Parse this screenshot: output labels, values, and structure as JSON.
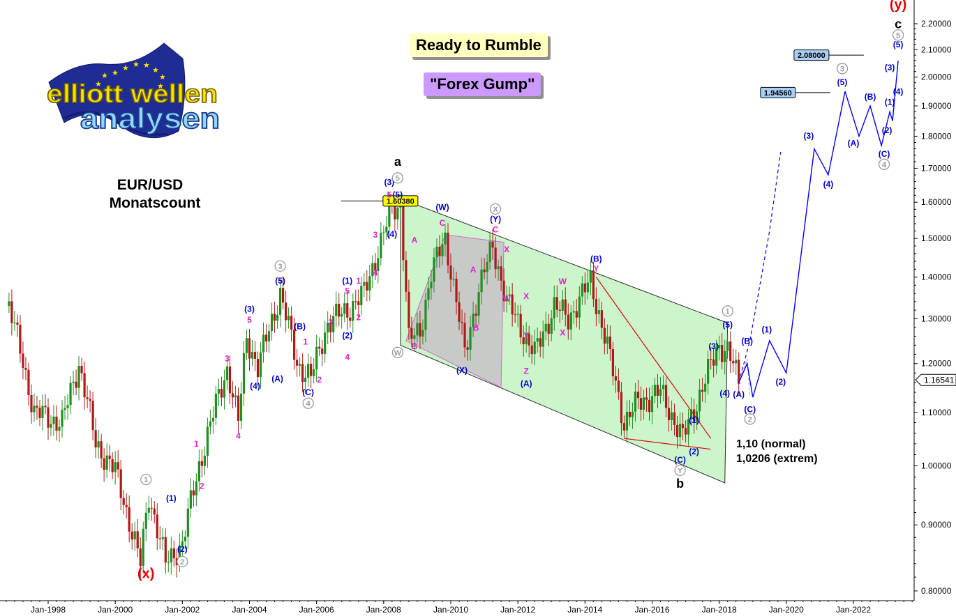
{
  "logo": {
    "line1": "elliott wellen",
    "line2": "analysen"
  },
  "title": {
    "pair": "EUR/USD",
    "subtitle": "Monatscount"
  },
  "badges": {
    "rumble": "Ready to Rumble",
    "gump": "\"Forex Gump\""
  },
  "notes": {
    "normal": "1,10 (normal)",
    "extrem": "1,0206 (extrem)"
  },
  "colors": {
    "up_candle": "#1f8f1f",
    "down_candle": "#b01818",
    "channel_fill": "#ccf5cc",
    "gray_box": "#c8c8c8",
    "forecast": "#0000ff",
    "wave_blue": "#0000cc",
    "wave_magenta": "#e020d0",
    "wave_gray": "#9a9a9a",
    "wave_red": "#e00000",
    "trendline_red": "#e00000",
    "yellow_label": "#ffff00",
    "blue_label": "#a8cff5",
    "rumble_bg": "#ffffc0",
    "gump_bg": "#cc99ff"
  },
  "chart_data": {
    "type": "candlestick",
    "instrument": "EUR/USD",
    "timeframe": "monthly",
    "ylim": [
      0.78,
      2.3
    ],
    "y_scale": "log",
    "yticks": [
      "0.80000",
      "0.90000",
      "1.00000",
      "1.10000",
      "1.20000",
      "1.30000",
      "1.40000",
      "1.50000",
      "1.60000",
      "1.70000",
      "1.80000",
      "1.90000",
      "2.00000",
      "2.10000",
      "2.20000"
    ],
    "xlim": [
      "1996-10",
      "2023-12"
    ],
    "xticks": [
      "Jan-1998",
      "Jan-2000",
      "Jan-2002",
      "Jan-2004",
      "Jan-2006",
      "Jan-2008",
      "Jan-2010",
      "Jan-2012",
      "Jan-2014",
      "Jan-2016",
      "Jan-2018",
      "Jan-2020",
      "Jan-2022"
    ],
    "current_price": "1.16541",
    "price_labels": [
      {
        "text": "1.60380",
        "date": "2008-07",
        "price": 1.6038
      },
      {
        "text": "1.94560",
        "date": "2019-10",
        "price": 1.9456
      },
      {
        "text": "2.08000",
        "date": "2020-10",
        "price": 2.08
      }
    ],
    "anchors": [
      {
        "date": "1996-11",
        "price": 1.33
      },
      {
        "date": "1997-08",
        "price": 1.1
      },
      {
        "date": "1998-06",
        "price": 1.08
      },
      {
        "date": "1998-12",
        "price": 1.2
      },
      {
        "date": "1999-06",
        "price": 1.04
      },
      {
        "date": "2000-01",
        "price": 0.99
      },
      {
        "date": "2000-10",
        "price": 0.84
      },
      {
        "date": "2001-01",
        "price": 0.95
      },
      {
        "date": "2001-07",
        "price": 0.84
      },
      {
        "date": "2002-01",
        "price": 0.87
      },
      {
        "date": "2002-07",
        "price": 1.0
      },
      {
        "date": "2003-05",
        "price": 1.19
      },
      {
        "date": "2003-09",
        "price": 1.08
      },
      {
        "date": "2003-12",
        "price": 1.26
      },
      {
        "date": "2004-04",
        "price": 1.19
      },
      {
        "date": "2004-12",
        "price": 1.36
      },
      {
        "date": "2005-06",
        "price": 1.2
      },
      {
        "date": "2005-11",
        "price": 1.17
      },
      {
        "date": "2006-05",
        "price": 1.29
      },
      {
        "date": "2006-12",
        "price": 1.32
      },
      {
        "date": "2007-06",
        "price": 1.36
      },
      {
        "date": "2008-04",
        "price": 1.58
      },
      {
        "date": "2008-07",
        "price": 1.59
      },
      {
        "date": "2008-10",
        "price": 1.25
      },
      {
        "date": "2009-02",
        "price": 1.27
      },
      {
        "date": "2009-06",
        "price": 1.41
      },
      {
        "date": "2009-11",
        "price": 1.5
      },
      {
        "date": "2010-06",
        "price": 1.22
      },
      {
        "date": "2010-11",
        "price": 1.37
      },
      {
        "date": "2011-04",
        "price": 1.48
      },
      {
        "date": "2011-09",
        "price": 1.34
      },
      {
        "date": "2012-07",
        "price": 1.22
      },
      {
        "date": "2013-02",
        "price": 1.33
      },
      {
        "date": "2013-07",
        "price": 1.3
      },
      {
        "date": "2014-03",
        "price": 1.39
      },
      {
        "date": "2015-03",
        "price": 1.08
      },
      {
        "date": "2015-08",
        "price": 1.12
      },
      {
        "date": "2016-04",
        "price": 1.14
      },
      {
        "date": "2016-12",
        "price": 1.05
      },
      {
        "date": "2017-05",
        "price": 1.12
      },
      {
        "date": "2018-01",
        "price": 1.24
      },
      {
        "date": "2018-04",
        "price": 1.23
      },
      {
        "date": "2018-08",
        "price": 1.16
      }
    ],
    "forecast_path": [
      {
        "date": "2018-08",
        "price": 1.16
      },
      {
        "date": "2018-11",
        "price": 1.2
      },
      {
        "date": "2019-01",
        "price": 1.13
      },
      {
        "date": "2019-07",
        "price": 1.25
      },
      {
        "date": "2020-01",
        "price": 1.18
      },
      {
        "date": "2020-11",
        "price": 1.76
      },
      {
        "date": "2021-04",
        "price": 1.68
      },
      {
        "date": "2021-10",
        "price": 1.95
      },
      {
        "date": "2022-03",
        "price": 1.8
      },
      {
        "date": "2022-07",
        "price": 1.9
      },
      {
        "date": "2022-11",
        "price": 1.77
      },
      {
        "date": "2023-02",
        "price": 1.88
      },
      {
        "date": "2023-03",
        "price": 1.85
      },
      {
        "date": "2023-05",
        "price": 2.06
      }
    ],
    "forecast_dashed": [
      {
        "date": "2018-08",
        "price": 1.16
      },
      {
        "date": "2018-12",
        "price": 1.25
      },
      {
        "date": "2019-07",
        "price": 1.52
      },
      {
        "date": "2019-11",
        "price": 1.75
      }
    ],
    "forecast_gray_dashed": [
      {
        "date": "2018-08",
        "price": 1.16
      },
      {
        "date": "2018-11",
        "price": 1.21
      },
      {
        "date": "2018-12",
        "price": 1.13
      }
    ],
    "channel_polygon": [
      {
        "date": "2008-07",
        "price": 1.61
      },
      {
        "date": "2018-04",
        "price": 1.29
      },
      {
        "date": "2018-03",
        "price": 0.97
      },
      {
        "date": "2008-07",
        "price": 1.24
      }
    ],
    "gray_box": [
      {
        "date": "2008-09",
        "price": 1.25
      },
      {
        "date": "2009-11",
        "price": 1.51
      },
      {
        "date": "2011-08",
        "price": 1.49
      },
      {
        "date": "2011-07",
        "price": 1.15
      }
    ],
    "trendlines": [
      {
        "from": {
          "date": "2014-05",
          "price": 1.4
        },
        "to": {
          "date": "2017-10",
          "price": 1.05
        }
      },
      {
        "from": {
          "date": "2015-03",
          "price": 1.05
        },
        "to": {
          "date": "2017-10",
          "price": 1.03
        }
      }
    ],
    "wave_labels": [
      {
        "text": "(x)",
        "date": "2000-12",
        "price": 0.826,
        "style": "red-big"
      },
      {
        "text": "1",
        "date": "2000-12",
        "price": 0.976,
        "style": "gray-circle"
      },
      {
        "text": "2",
        "date": "2002-01",
        "price": 0.843,
        "style": "gray-circle"
      },
      {
        "text": "(1)",
        "date": "2001-09",
        "price": 0.944,
        "style": "blue"
      },
      {
        "text": "(2)",
        "date": "2002-01",
        "price": 0.862,
        "style": "blue"
      },
      {
        "text": "1",
        "date": "2002-06",
        "price": 1.04,
        "style": "magenta"
      },
      {
        "text": "2",
        "date": "2002-08",
        "price": 0.965,
        "style": "magenta"
      },
      {
        "text": "3",
        "date": "2003-05",
        "price": 1.211,
        "style": "magenta"
      },
      {
        "text": "4",
        "date": "2003-09",
        "price": 1.055,
        "style": "magenta"
      },
      {
        "text": "5",
        "date": "2004-01",
        "price": 1.298,
        "style": "magenta"
      },
      {
        "text": "(3)",
        "date": "2004-01",
        "price": 1.323,
        "style": "blue"
      },
      {
        "text": "(4)",
        "date": "2004-03",
        "price": 1.153,
        "style": "blue"
      },
      {
        "text": "(5)",
        "date": "2004-12",
        "price": 1.391,
        "style": "blue"
      },
      {
        "text": "3",
        "date": "2004-12",
        "price": 1.428,
        "style": "gray-circle"
      },
      {
        "text": "(B)",
        "date": "2005-07",
        "price": 1.282,
        "style": "blue"
      },
      {
        "text": "1",
        "date": "2005-09",
        "price": 1.248,
        "style": "magenta"
      },
      {
        "text": "(A)",
        "date": "2004-11",
        "price": 1.168,
        "style": "blue"
      },
      {
        "text": "(C)",
        "date": "2005-10",
        "price": 1.14,
        "style": "blue"
      },
      {
        "text": "2",
        "date": "2006-02",
        "price": 1.166,
        "style": "magenta"
      },
      {
        "text": "4",
        "date": "2005-10",
        "price": 1.118,
        "style": "gray-circle"
      },
      {
        "text": "3",
        "date": "2006-06",
        "price": 1.292,
        "style": "magenta"
      },
      {
        "text": "4",
        "date": "2006-12",
        "price": 1.214,
        "style": "magenta"
      },
      {
        "text": "(2)",
        "date": "2006-12",
        "price": 1.262,
        "style": "blue"
      },
      {
        "text": "2",
        "date": "2007-04",
        "price": 1.303,
        "style": "magenta"
      },
      {
        "text": "5",
        "date": "2006-12",
        "price": 1.366,
        "style": "magenta"
      },
      {
        "text": "(1)",
        "date": "2006-12",
        "price": 1.391,
        "style": "blue"
      },
      {
        "text": "1",
        "date": "2007-04",
        "price": 1.391,
        "style": "magenta"
      },
      {
        "text": "4",
        "date": "2007-10",
        "price": 1.411,
        "style": "magenta"
      },
      {
        "text": "3",
        "date": "2007-10",
        "price": 1.51,
        "style": "magenta"
      },
      {
        "text": "(3)",
        "date": "2008-03",
        "price": 1.659,
        "style": "blue"
      },
      {
        "text": "5",
        "date": "2008-03",
        "price": 1.622,
        "style": "magenta"
      },
      {
        "text": "(5)",
        "date": "2008-06",
        "price": 1.622,
        "style": "blue"
      },
      {
        "text": "5",
        "date": "2008-06",
        "price": 1.671,
        "style": "gray-circle"
      },
      {
        "text": "a",
        "date": "2008-06",
        "price": 1.721,
        "style": "black-big"
      },
      {
        "text": "(4)",
        "date": "2008-04",
        "price": 1.512,
        "style": "blue"
      },
      {
        "text": "A",
        "date": "2008-12",
        "price": 1.496,
        "style": "magenta"
      },
      {
        "text": "B",
        "date": "2008-12",
        "price": 1.238,
        "style": "magenta"
      },
      {
        "text": "W",
        "date": "2008-06",
        "price": 1.224,
        "style": "gray-circle"
      },
      {
        "text": "(W)",
        "date": "2009-10",
        "price": 1.586,
        "style": "blue"
      },
      {
        "text": "C",
        "date": "2009-10",
        "price": 1.542,
        "style": "magenta"
      },
      {
        "text": "(X)",
        "date": "2010-05",
        "price": 1.186,
        "style": "blue"
      },
      {
        "text": "A",
        "date": "2010-09",
        "price": 1.419,
        "style": "magenta"
      },
      {
        "text": "B",
        "date": "2010-10",
        "price": 1.279,
        "style": "magenta"
      },
      {
        "text": "X",
        "date": "2011-05",
        "price": 1.581,
        "style": "gray-circle"
      },
      {
        "text": "(Y)",
        "date": "2011-05",
        "price": 1.553,
        "style": "blue"
      },
      {
        "text": "C",
        "date": "2011-05",
        "price": 1.524,
        "style": "magenta"
      },
      {
        "text": "X",
        "date": "2011-09",
        "price": 1.471,
        "style": "magenta"
      },
      {
        "text": "W",
        "date": "2011-09",
        "price": 1.348,
        "style": "magenta"
      },
      {
        "text": "X",
        "date": "2012-04",
        "price": 1.354,
        "style": "magenta"
      },
      {
        "text": "Y",
        "date": "2012-04",
        "price": 1.262,
        "style": "magenta"
      },
      {
        "text": "Z",
        "date": "2012-04",
        "price": 1.184,
        "style": "magenta"
      },
      {
        "text": "(A)",
        "date": "2012-04",
        "price": 1.158,
        "style": "blue"
      },
      {
        "text": "W",
        "date": "2013-05",
        "price": 1.389,
        "style": "magenta"
      },
      {
        "text": "X",
        "date": "2013-05",
        "price": 1.268,
        "style": "magenta"
      },
      {
        "text": "(B)",
        "date": "2014-05",
        "price": 1.447,
        "style": "blue"
      },
      {
        "text": "Y",
        "date": "2014-05",
        "price": 1.422,
        "style": "magenta"
      },
      {
        "text": "(1)",
        "date": "2017-04",
        "price": 1.085,
        "style": "blue"
      },
      {
        "text": "(2)",
        "date": "2017-04",
        "price": 1.026,
        "style": "blue"
      },
      {
        "text": "(C)",
        "date": "2016-11",
        "price": 1.011,
        "style": "blue"
      },
      {
        "text": "Y",
        "date": "2016-11",
        "price": 0.992,
        "style": "gray-circle"
      },
      {
        "text": "b",
        "date": "2016-11",
        "price": 0.969,
        "style": "black-big"
      },
      {
        "text": "(3)",
        "date": "2017-11",
        "price": 1.238,
        "style": "blue"
      },
      {
        "text": "(4)",
        "date": "2018-03",
        "price": 1.138,
        "style": "blue"
      },
      {
        "text": "(5)",
        "date": "2018-04",
        "price": 1.286,
        "style": "blue"
      },
      {
        "text": "1",
        "date": "2018-04",
        "price": 1.318,
        "style": "gray-circle"
      },
      {
        "text": "(A)",
        "date": "2018-08",
        "price": 1.136,
        "style": "blue"
      },
      {
        "text": "(B)",
        "date": "2018-11",
        "price": 1.249,
        "style": "blue"
      },
      {
        "text": "(C)",
        "date": "2018-12",
        "price": 1.106,
        "style": "blue"
      },
      {
        "text": "2",
        "date": "2018-12",
        "price": 1.087,
        "style": "gray-circle"
      },
      {
        "text": "(1)",
        "date": "2019-06",
        "price": 1.275,
        "style": "blue"
      },
      {
        "text": "(2)",
        "date": "2019-11",
        "price": 1.162,
        "style": "blue"
      },
      {
        "text": "(3)",
        "date": "2020-09",
        "price": 1.802,
        "style": "blue"
      },
      {
        "text": "(4)",
        "date": "2021-04",
        "price": 1.652,
        "style": "blue"
      },
      {
        "text": "(5)",
        "date": "2021-09",
        "price": 1.982,
        "style": "blue"
      },
      {
        "text": "3",
        "date": "2021-09",
        "price": 2.031,
        "style": "gray-circle"
      },
      {
        "text": "(A)",
        "date": "2022-01",
        "price": 1.778,
        "style": "blue"
      },
      {
        "text": "(B)",
        "date": "2022-07",
        "price": 1.931,
        "style": "blue"
      },
      {
        "text": "(C)",
        "date": "2022-12",
        "price": 1.744,
        "style": "blue"
      },
      {
        "text": "4",
        "date": "2022-12",
        "price": 1.712,
        "style": "gray-circle"
      },
      {
        "text": "(1)",
        "date": "2023-02",
        "price": 1.913,
        "style": "blue"
      },
      {
        "text": "(2)",
        "date": "2023-01",
        "price": 1.819,
        "style": "blue"
      },
      {
        "text": "(3)",
        "date": "2023-02",
        "price": 2.035,
        "style": "blue"
      },
      {
        "text": "(4)",
        "date": "2023-05",
        "price": 1.949,
        "style": "blue"
      },
      {
        "text": "(5)",
        "date": "2023-05",
        "price": 2.12,
        "style": "blue"
      },
      {
        "text": "5",
        "date": "2023-05",
        "price": 2.156,
        "style": "gray-circle"
      },
      {
        "text": "c",
        "date": "2023-05",
        "price": 2.2,
        "style": "black-big"
      },
      {
        "text": "(y)",
        "date": "2023-05",
        "price": 2.278,
        "style": "red-big"
      }
    ]
  }
}
